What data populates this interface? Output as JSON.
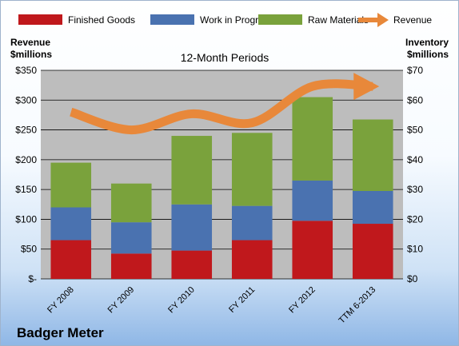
{
  "chart_data": {
    "type": "bar",
    "stacked": true,
    "title": "12-Month Periods",
    "company": "Badger Meter",
    "y_left_label": [
      "Revenue",
      "$millions"
    ],
    "y_right_label": [
      "Inventory",
      "$millions"
    ],
    "y_left_ticks": [
      "$-",
      "$50",
      "$100",
      "$150",
      "$200",
      "$250",
      "$300",
      "$350"
    ],
    "y_right_ticks": [
      "$0",
      "$10",
      "$20",
      "$30",
      "$40",
      "$50",
      "$60",
      "$70"
    ],
    "y_left_lim": [
      0,
      350
    ],
    "y_right_lim": [
      0,
      70
    ],
    "grid": true,
    "legend_position": "top",
    "categories": [
      "FY 2008",
      "FY 2009",
      "FY 2010",
      "FY 2011",
      "FY 2012",
      "TTM 6-2013"
    ],
    "series": [
      {
        "name": "Finished Goods",
        "color": "#c0181c",
        "axis": "right",
        "values": [
          13,
          8.5,
          9.5,
          13,
          19.5,
          18.5
        ]
      },
      {
        "name": "Work in Progress",
        "color": "#4a72b0",
        "axis": "right",
        "values": [
          11,
          10.5,
          15.5,
          11.5,
          13.5,
          11
        ]
      },
      {
        "name": "Raw Materials",
        "color": "#7aa23c",
        "axis": "right",
        "values": [
          15,
          13,
          23,
          24.5,
          28,
          24
        ]
      },
      {
        "name": "Revenue",
        "color": "#e8883a",
        "axis": "left",
        "type": "line",
        "values": [
          280,
          250,
          277,
          262,
          323,
          323
        ]
      }
    ]
  }
}
